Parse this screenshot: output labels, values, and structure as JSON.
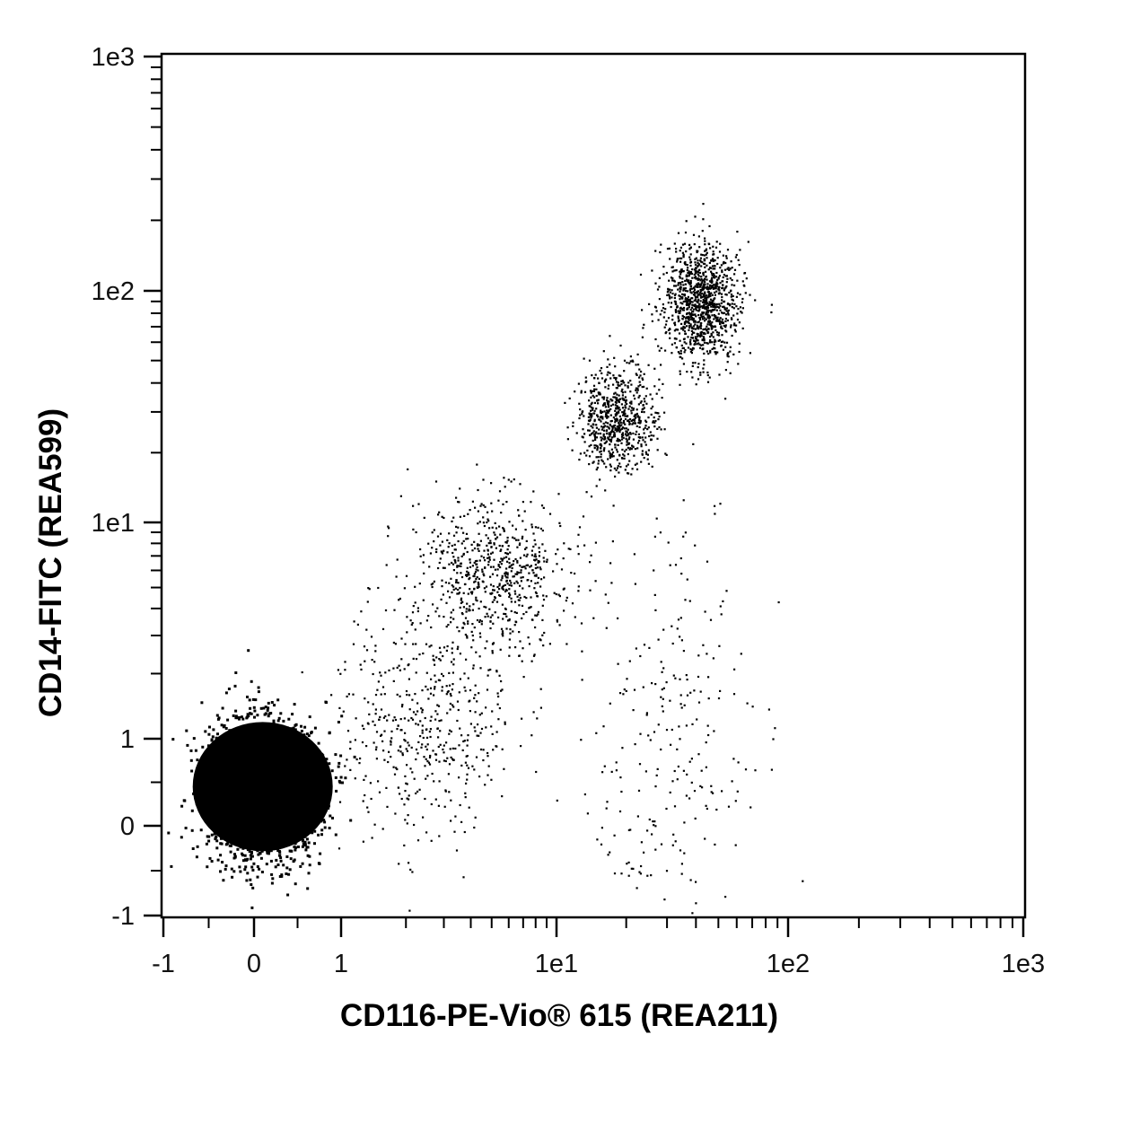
{
  "chart_data": {
    "type": "scatter",
    "title": "",
    "xlabel": "CD116-PE-Vio® 615 (REA211)",
    "ylabel": "CD14-FITC (REA599)",
    "x_scale": "biexponential",
    "y_scale": "biexponential",
    "xlim": [
      -1,
      1000
    ],
    "ylim": [
      -1,
      1000
    ],
    "x_ticks": [
      {
        "value": -1,
        "label": "-1"
      },
      {
        "value": 0,
        "label": "0"
      },
      {
        "value": 1,
        "label": "1"
      },
      {
        "value": 10,
        "label": "1e1"
      },
      {
        "value": 100,
        "label": "1e2"
      },
      {
        "value": 1000,
        "label": "1e3"
      }
    ],
    "y_ticks": [
      {
        "value": -1,
        "label": "-1"
      },
      {
        "value": 0,
        "label": "0"
      },
      {
        "value": 1,
        "label": "1"
      },
      {
        "value": 10,
        "label": "1e1"
      },
      {
        "value": 100,
        "label": "1e2"
      },
      {
        "value": 1000,
        "label": "1e3"
      }
    ],
    "grid": false,
    "legend": "none",
    "point_color": "#000000",
    "populations": [
      {
        "center": [
          0.1,
          0.4
        ],
        "spread": [
          0.35,
          0.45
        ],
        "density": "very high"
      },
      {
        "center": [
          2.5,
          1.2
        ],
        "spread": [
          1.5,
          1.0
        ],
        "density": "low"
      },
      {
        "center": [
          5.0,
          6.0
        ],
        "spread": [
          2.5,
          3.0
        ],
        "density": "medium"
      },
      {
        "center": [
          18.0,
          28.0
        ],
        "spread": [
          4.0,
          8.0
        ],
        "density": "medium"
      },
      {
        "center": [
          42.0,
          90.0
        ],
        "spread": [
          9.0,
          30.0
        ],
        "density": "high"
      },
      {
        "center": [
          30.0,
          1.0
        ],
        "spread": [
          15.0,
          2.5
        ],
        "density": "sparse"
      }
    ]
  }
}
